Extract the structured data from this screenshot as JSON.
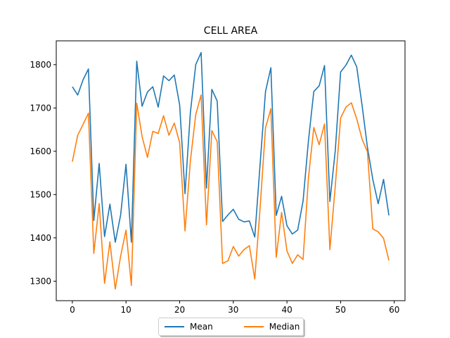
{
  "chart_data": {
    "type": "line",
    "title": "CELL AREA",
    "xlabel": "",
    "ylabel": "",
    "xlim": [
      -3,
      62
    ],
    "ylim": [
      1255,
      1855
    ],
    "xticks": [
      0,
      10,
      20,
      30,
      40,
      50,
      60
    ],
    "yticks": [
      1300,
      1400,
      1500,
      1600,
      1700,
      1800
    ],
    "grid": false,
    "legend": "bottom-center-outside",
    "x": [
      0,
      1,
      2,
      3,
      4,
      5,
      6,
      7,
      8,
      9,
      10,
      11,
      12,
      13,
      14,
      15,
      16,
      17,
      18,
      19,
      20,
      21,
      22,
      23,
      24,
      25,
      26,
      27,
      28,
      29,
      30,
      31,
      32,
      33,
      34,
      35,
      36,
      37,
      38,
      39,
      40,
      41,
      42,
      43,
      44,
      45,
      46,
      47,
      48,
      49,
      50,
      51,
      52,
      53,
      54,
      55,
      56,
      57,
      58,
      59
    ],
    "series": [
      {
        "name": "Mean",
        "color": "#1f77b4",
        "values": [
          1749,
          1730,
          1765,
          1790,
          1440,
          1572,
          1403,
          1478,
          1390,
          1453,
          1570,
          1390,
          1808,
          1704,
          1737,
          1749,
          1702,
          1774,
          1763,
          1776,
          1707,
          1502,
          1690,
          1800,
          1828,
          1515,
          1743,
          1716,
          1438,
          1453,
          1466,
          1443,
          1437,
          1439,
          1402,
          1571,
          1738,
          1793,
          1452,
          1496,
          1428,
          1409,
          1418,
          1485,
          1624,
          1738,
          1751,
          1798,
          1484,
          1601,
          1783,
          1799,
          1822,
          1795,
          1706,
          1609,
          1535,
          1479,
          1535,
          1452
        ]
      },
      {
        "name": "Median",
        "color": "#ff7f0e",
        "values": [
          1576,
          1637,
          1662,
          1688,
          1364,
          1479,
          1295,
          1391,
          1282,
          1358,
          1418,
          1290,
          1711,
          1634,
          1586,
          1646,
          1641,
          1682,
          1637,
          1665,
          1620,
          1416,
          1578,
          1685,
          1730,
          1430,
          1648,
          1622,
          1341,
          1347,
          1380,
          1358,
          1373,
          1382,
          1305,
          1470,
          1654,
          1698,
          1355,
          1459,
          1370,
          1341,
          1361,
          1350,
          1538,
          1655,
          1615,
          1663,
          1373,
          1519,
          1677,
          1702,
          1712,
          1675,
          1628,
          1599,
          1421,
          1414,
          1399,
          1348
        ]
      }
    ]
  }
}
